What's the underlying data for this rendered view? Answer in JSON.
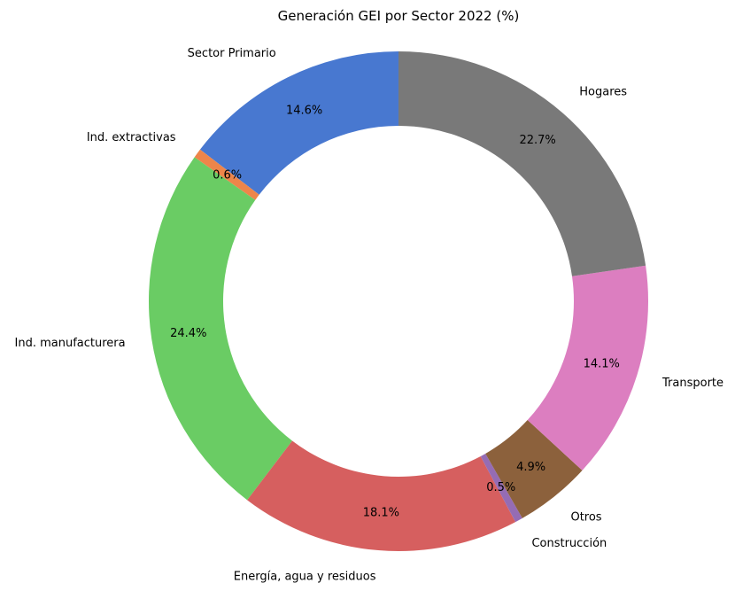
{
  "chart_data": {
    "type": "pie",
    "variant": "donut",
    "title": "Generación GEI por Sector 2022 (%)",
    "start_angle_deg": 90,
    "direction": "counterclockwise",
    "slices": [
      {
        "label": "Sector Primario",
        "value": 14.6,
        "pct_label": "14.6%",
        "color": "#4878d0"
      },
      {
        "label": "Ind. extractivas",
        "value": 0.6,
        "pct_label": "0.6%",
        "color": "#ee854a"
      },
      {
        "label": "Ind. manufacturera",
        "value": 24.4,
        "pct_label": "24.4%",
        "color": "#6acc64"
      },
      {
        "label": "Energía, agua y residuos",
        "value": 18.1,
        "pct_label": "18.1%",
        "color": "#d65f5f"
      },
      {
        "label": "Construcción",
        "value": 0.5,
        "pct_label": "0.5%",
        "color": "#956cb4"
      },
      {
        "label": "Otros",
        "value": 4.9,
        "pct_label": "4.9%",
        "color": "#8c613c"
      },
      {
        "label": "Transporte",
        "value": 14.1,
        "pct_label": "14.1%",
        "color": "#dc7ec0"
      },
      {
        "label": "Hogares",
        "value": 22.7,
        "pct_label": "22.7%",
        "color": "#797979"
      }
    ]
  }
}
